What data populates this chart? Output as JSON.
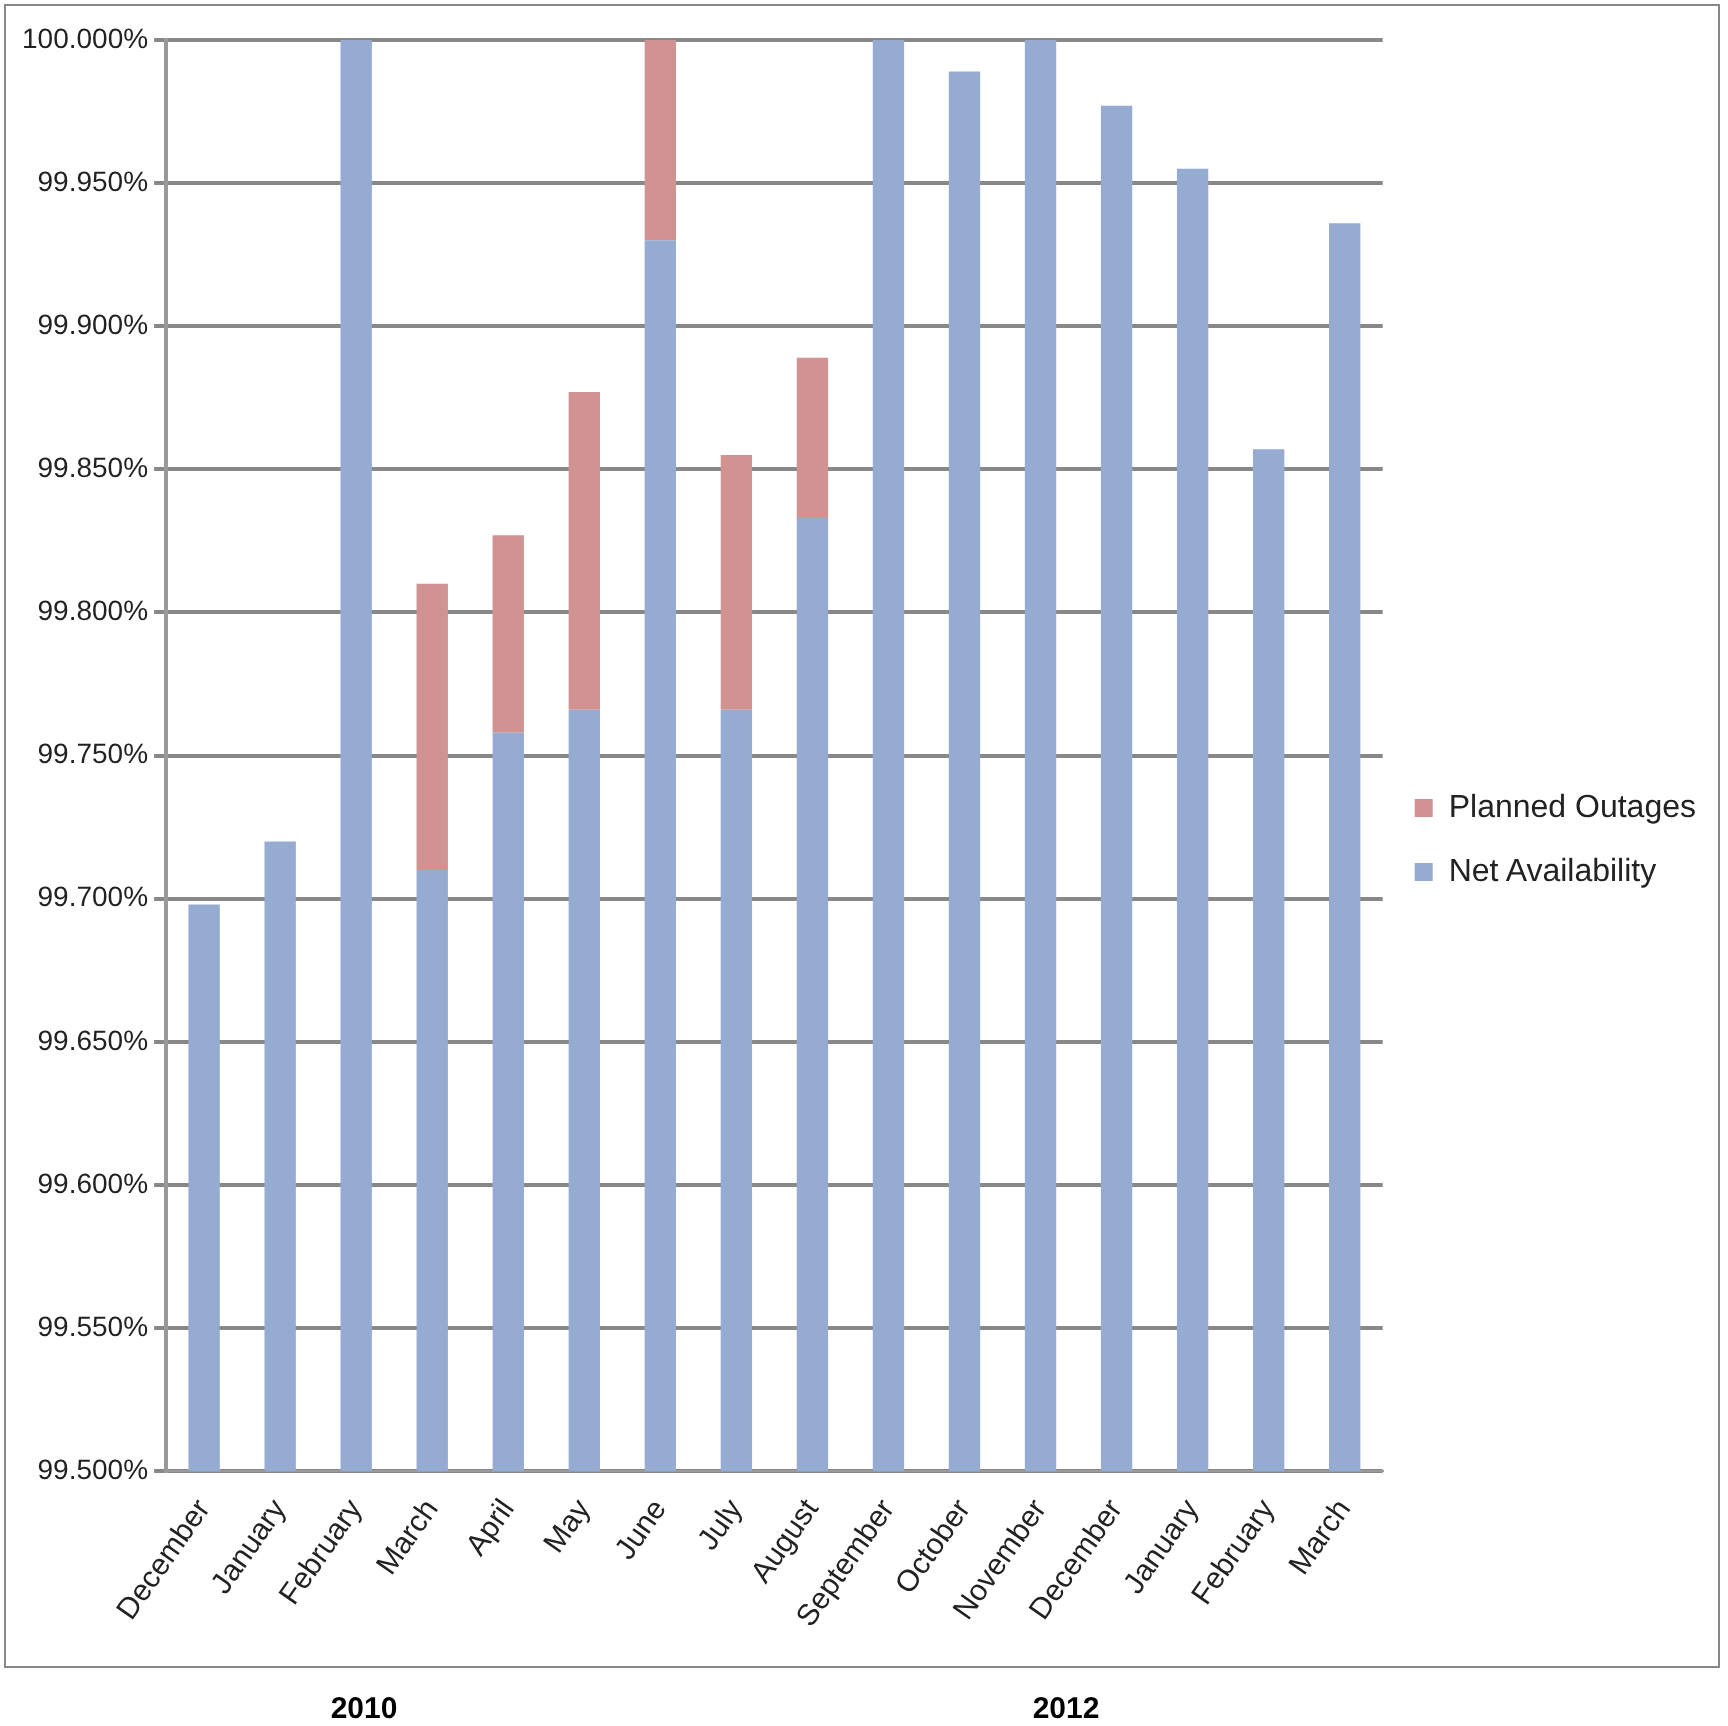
{
  "chart_data": {
    "type": "bar",
    "categories": [
      "December",
      "January",
      "February",
      "March",
      "April",
      "May",
      "June",
      "July",
      "August",
      "September",
      "October",
      "November",
      "December",
      "January",
      "February",
      "March"
    ],
    "series": [
      {
        "name": "Net Availability",
        "color": "#95abd2",
        "values": [
          99.698,
          99.72,
          100,
          99.71,
          99.758,
          99.766,
          99.93,
          99.766,
          99.833,
          100,
          99.989,
          100,
          99.977,
          99.955,
          99.857,
          99.936
        ]
      },
      {
        "name": "Planned Outages",
        "color": "#d19392",
        "values": [
          null,
          null,
          null,
          0.1,
          0.069,
          0.111,
          0.07,
          0.089,
          0.056,
          null,
          null,
          null,
          null,
          null,
          null,
          null
        ],
        "base": [
          null,
          null,
          null,
          99.71,
          99.758,
          99.766,
          99.93,
          99.766,
          99.833,
          null,
          null,
          null,
          null,
          null,
          null,
          null
        ]
      }
    ],
    "ylim": [
      99.5,
      100
    ],
    "yticks": [
      {
        "value": 99.5,
        "label": "99.500%"
      },
      {
        "value": 99.55,
        "label": "99.550%"
      },
      {
        "value": 99.6,
        "label": "99.600%"
      },
      {
        "value": 99.65,
        "label": "99.650%"
      },
      {
        "value": 99.7,
        "label": "99.700%"
      },
      {
        "value": 99.75,
        "label": "99.750%"
      },
      {
        "value": 99.8,
        "label": "99.800%"
      },
      {
        "value": 99.85,
        "label": "99.850%"
      },
      {
        "value": 99.9,
        "label": "99.900%"
      },
      {
        "value": 99.95,
        "label": "99.950%"
      },
      {
        "value": 100,
        "label": "100.000%"
      }
    ],
    "grid": "y",
    "legend": "right",
    "annotations": [
      "2010",
      "2012"
    ]
  }
}
